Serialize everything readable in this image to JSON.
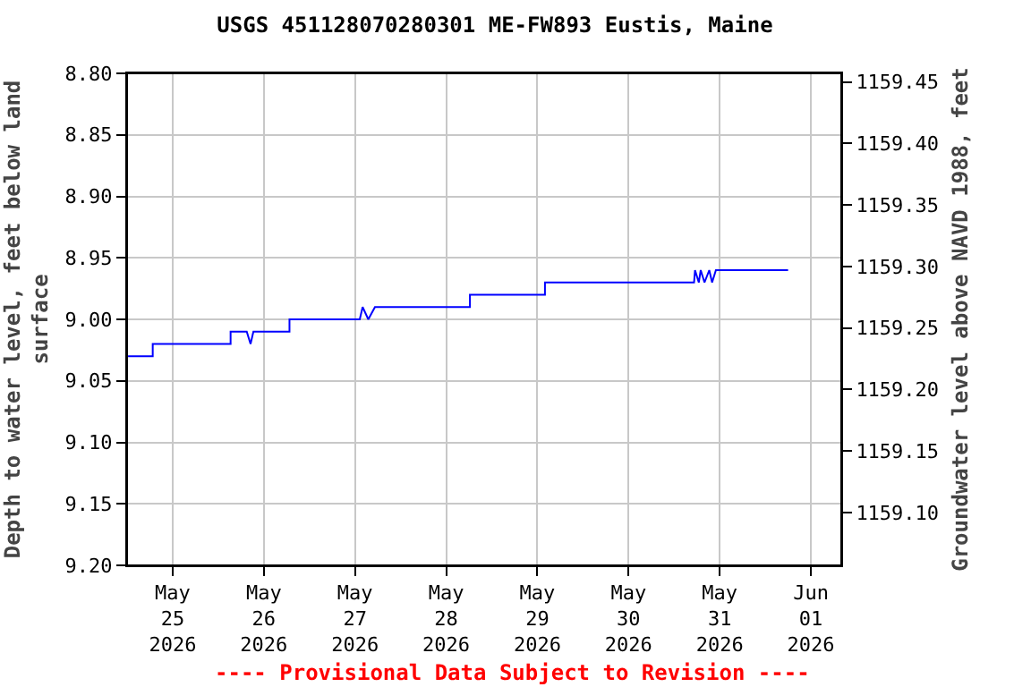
{
  "chart_data": {
    "type": "line",
    "title": "USGS 451128070280301 ME-FW893 Eustis, Maine",
    "ylabel": "Depth to water level, feet below land surface",
    "y2label": "Groundwater level above NAVD 1988, feet",
    "annotations": [
      "---- Provisional Data Subject to Revision ----"
    ],
    "x": [
      "2026-05-24T12:15",
      "2026-05-24T18:45",
      "2026-05-24T18:45",
      "2026-05-25T15:15",
      "2026-05-25T15:15",
      "2026-05-25T19:30",
      "2026-05-25T20:30",
      "2026-05-25T21:15",
      "2026-05-26T06:45",
      "2026-05-26T06:45",
      "2026-05-27T01:15",
      "2026-05-27T02:00",
      "2026-05-27T03:30",
      "2026-05-27T05:15",
      "2026-05-28T06:15",
      "2026-05-28T06:15",
      "2026-05-29T02:00",
      "2026-05-29T02:00",
      "2026-05-30T17:15",
      "2026-05-30T17:30",
      "2026-05-30T18:30",
      "2026-05-30T19:00",
      "2026-05-30T20:00",
      "2026-05-30T21:15",
      "2026-05-30T22:00",
      "2026-05-30T23:00",
      "2026-05-31T18:00"
    ],
    "series": [
      {
        "color": "#0000ff",
        "values": [
          9.03,
          9.03,
          9.02,
          9.02,
          9.01,
          9.01,
          9.02,
          9.01,
          9.01,
          9.0,
          9.0,
          8.99,
          9.0,
          8.99,
          8.99,
          8.98,
          8.98,
          8.97,
          8.97,
          8.96,
          8.97,
          8.96,
          8.97,
          8.96,
          8.97,
          8.96,
          8.96
        ]
      }
    ],
    "xlim": [
      "2026-05-24T12:00",
      "2026-06-01T08:00"
    ],
    "xticks": [
      {
        "value": "2026-05-25",
        "label": "May\n25\n2026"
      },
      {
        "value": "2026-05-26",
        "label": "May\n26\n2026"
      },
      {
        "value": "2026-05-27",
        "label": "May\n27\n2026"
      },
      {
        "value": "2026-05-28",
        "label": "May\n28\n2026"
      },
      {
        "value": "2026-05-29",
        "label": "May\n29\n2026"
      },
      {
        "value": "2026-05-30",
        "label": "May\n30\n2026"
      },
      {
        "value": "2026-05-31",
        "label": "May\n31\n2026"
      },
      {
        "value": "2026-06-01",
        "label": "Jun\n01\n2026"
      }
    ],
    "ylim": [
      9.2,
      8.8
    ],
    "yticks": [
      {
        "value": 8.8,
        "label": "8.80"
      },
      {
        "value": 8.85,
        "label": "8.85"
      },
      {
        "value": 8.9,
        "label": "8.90"
      },
      {
        "value": 8.95,
        "label": "8.95"
      },
      {
        "value": 9.0,
        "label": "9.00"
      },
      {
        "value": 9.05,
        "label": "9.05"
      },
      {
        "value": 9.1,
        "label": "9.10"
      },
      {
        "value": 9.15,
        "label": "9.15"
      },
      {
        "value": 9.2,
        "label": "9.20"
      }
    ],
    "y2lim": [
      1159.057,
      1159.457
    ],
    "y2ticks": [
      {
        "value": 1159.1,
        "label": "1159.10"
      },
      {
        "value": 1159.15,
        "label": "1159.15"
      },
      {
        "value": 1159.2,
        "label": "1159.20"
      },
      {
        "value": 1159.25,
        "label": "1159.25"
      },
      {
        "value": 1159.3,
        "label": "1159.30"
      },
      {
        "value": 1159.35,
        "label": "1159.35"
      },
      {
        "value": 1159.4,
        "label": "1159.40"
      },
      {
        "value": 1159.45,
        "label": "1159.45"
      }
    ],
    "grid": true,
    "marker": "none",
    "line_style": "solid"
  }
}
